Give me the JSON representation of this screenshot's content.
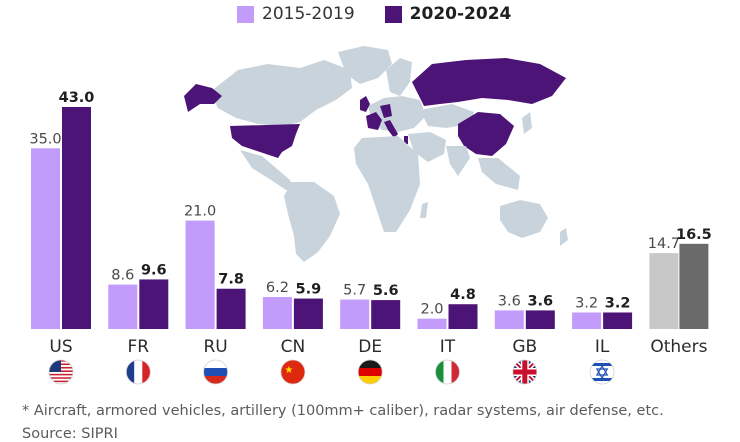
{
  "legend": {
    "series_a": "2015-2019",
    "series_b": "2020-2024"
  },
  "colors": {
    "series_a": "#c39bfa",
    "series_b": "#4d1478",
    "others_a": "#c8c8c8",
    "others_b": "#6a6a6a",
    "map_land": "#c9d3dc",
    "map_highlight": "#4d1478"
  },
  "chart_data": {
    "type": "bar",
    "categories": [
      "US",
      "FR",
      "RU",
      "CN",
      "DE",
      "IT",
      "GB",
      "IL",
      "Others"
    ],
    "flags": [
      "flag-us-icon",
      "flag-fr-icon",
      "flag-ru-icon",
      "flag-cn-icon",
      "flag-de-icon",
      "flag-it-icon",
      "flag-gb-icon",
      "flag-il-icon",
      ""
    ],
    "series": [
      {
        "name": "2015-2019",
        "values": [
          35.0,
          8.6,
          21.0,
          6.2,
          5.7,
          2.0,
          3.6,
          3.2,
          14.7
        ]
      },
      {
        "name": "2020-2024",
        "values": [
          43.0,
          9.6,
          7.8,
          5.9,
          5.6,
          4.8,
          3.6,
          3.2,
          16.5
        ]
      }
    ],
    "ylim": [
      0,
      45
    ],
    "grid": false,
    "legend_position": "top-center"
  },
  "footnote": "* Aircraft, armored vehicles, artillery (100mm+ caliber), radar systems, air defense, etc.",
  "source": "Source: SIPRI"
}
